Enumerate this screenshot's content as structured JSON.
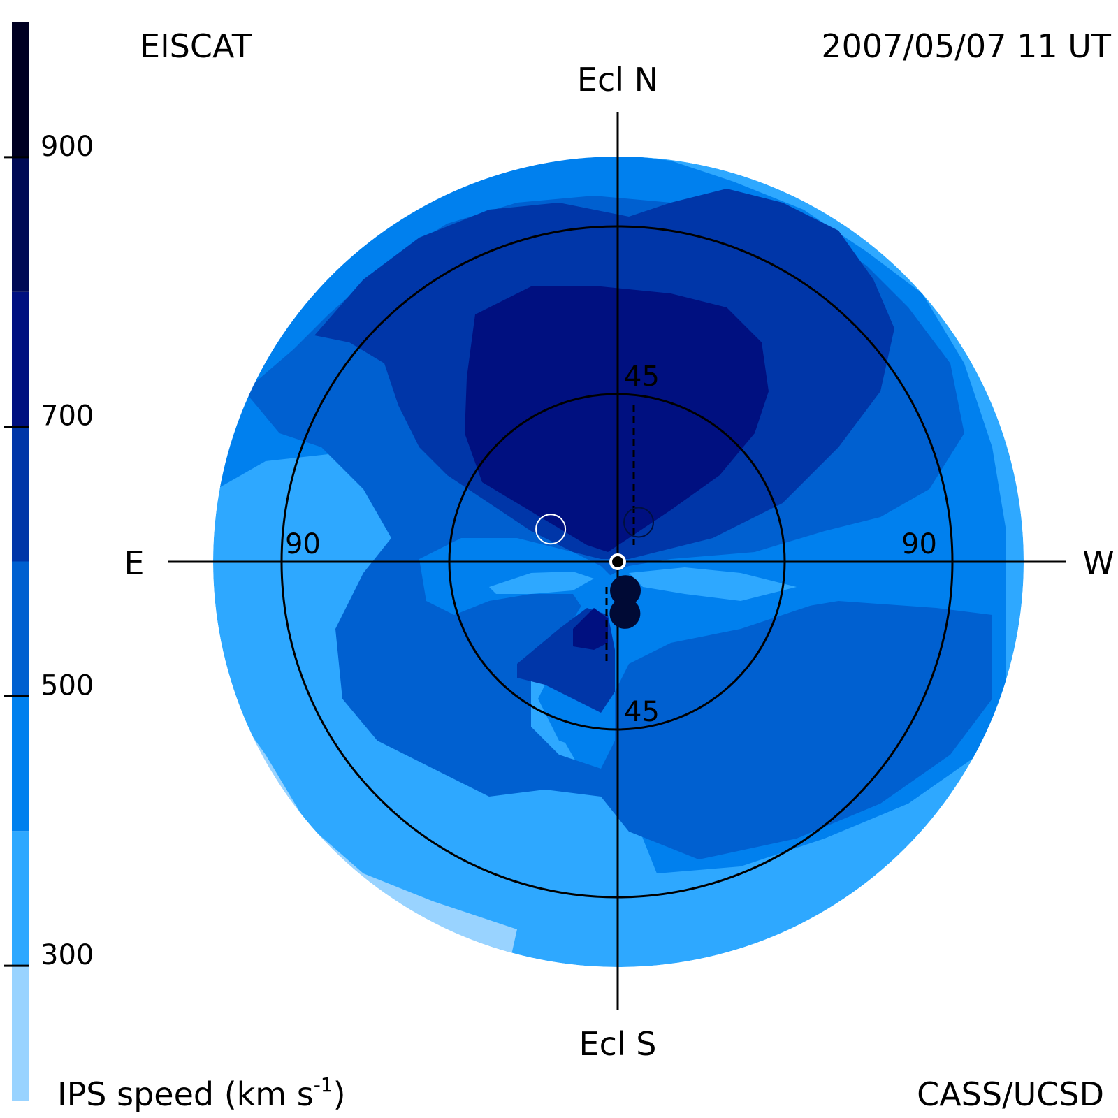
{
  "header": {
    "instrument": "EISCAT",
    "timestamp": "2007/05/07 11 UT",
    "credit": "CASS/UCSD"
  },
  "axes": {
    "north": "Ecl N",
    "south": "Ecl S",
    "east": "E",
    "west": "W",
    "ring_45_top": "45",
    "ring_45_bottom": "45",
    "ring_90_left": "90",
    "ring_90_right": "90"
  },
  "colorbar": {
    "title": "IPS speed (km s",
    "title_sup": "-1",
    "title_close": ")",
    "min": 200,
    "max": 1000,
    "ticks": [
      {
        "value": 900,
        "label": "900"
      },
      {
        "value": 700,
        "label": "700"
      },
      {
        "value": 500,
        "label": "500"
      },
      {
        "value": 300,
        "label": "300"
      }
    ],
    "bands": [
      {
        "from": 200,
        "to": 300,
        "color": "#99d3ff"
      },
      {
        "from": 300,
        "to": 400,
        "color": "#2ea8ff"
      },
      {
        "from": 400,
        "to": 500,
        "color": "#0080ee"
      },
      {
        "from": 500,
        "to": 600,
        "color": "#0060d0"
      },
      {
        "from": 600,
        "to": 700,
        "color": "#0036a8"
      },
      {
        "from": 700,
        "to": 800,
        "color": "#001080"
      },
      {
        "from": 800,
        "to": 900,
        "color": "#000a55"
      },
      {
        "from": 900,
        "to": 1000,
        "color": "#000022"
      }
    ]
  },
  "map_colors": {
    "c200": "#99d3ff",
    "c300": "#2ea8ff",
    "c400": "#0080ee",
    "c500": "#0060d0",
    "c600": "#0036a8",
    "c700": "#001080",
    "line": "#000000"
  },
  "sources": [
    {
      "name": "source-open-circle-dark",
      "elongation": 12,
      "position_angle": 332,
      "fill": "none",
      "stroke": "#001040"
    },
    {
      "name": "source-open-circle-light",
      "elongation": 20,
      "position_angle": 64,
      "fill": "none",
      "stroke": "#ffffff"
    },
    {
      "name": "source-filled-1",
      "elongation": 8,
      "position_angle": 195,
      "fill": "#000a35",
      "stroke": "#000a35"
    },
    {
      "name": "source-filled-2",
      "elongation": 14,
      "position_angle": 188,
      "fill": "#000a35",
      "stroke": "#000a35"
    }
  ]
}
